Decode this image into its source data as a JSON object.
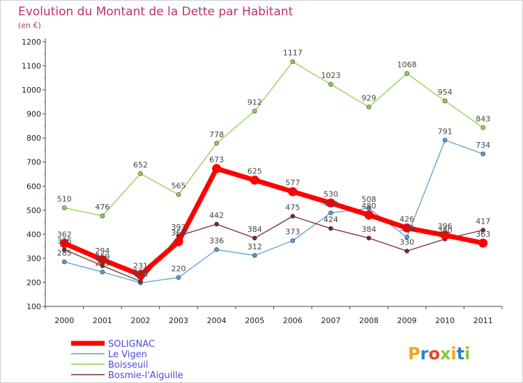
{
  "chart_data": {
    "type": "line",
    "title": "Evolution du Montant de la Dette par Habitant",
    "subtitle": "(en €)",
    "x": [
      "2000",
      "2001",
      "2002",
      "2003",
      "2004",
      "2005",
      "2006",
      "2007",
      "2008",
      "2009",
      "2010",
      "2011"
    ],
    "ylim": [
      100,
      1200
    ],
    "yticks": [
      100,
      200,
      300,
      400,
      500,
      600,
      700,
      800,
      900,
      1000,
      1100,
      1200
    ],
    "grid": false,
    "legend_position": "bottom-left",
    "series": [
      {
        "name": "SOLIGNAC",
        "color": "#ff0000",
        "values": [
          362,
          294,
          231,
          369,
          673,
          625,
          577,
          530,
          480,
          426,
          396,
          363
        ]
      },
      {
        "name": "Le Vigen",
        "color": "#5b9bd5",
        "values": [
          285,
          243,
          198,
          220,
          336,
          312,
          373,
          489,
          508,
          388,
          791,
          734
        ]
      },
      {
        "name": "Boisseuil",
        "color": "#8fd14f",
        "values": [
          510,
          476,
          652,
          565,
          778,
          912,
          1117,
          1023,
          929,
          1068,
          954,
          843
        ]
      },
      {
        "name": "Bosmie-l'Aiguille",
        "color": "#7b2a2a",
        "values": [
          336,
          269,
          204,
          393,
          442,
          384,
          475,
          424,
          384,
          330,
          380,
          417
        ]
      }
    ]
  },
  "logo": {
    "text": "Proxiti"
  }
}
